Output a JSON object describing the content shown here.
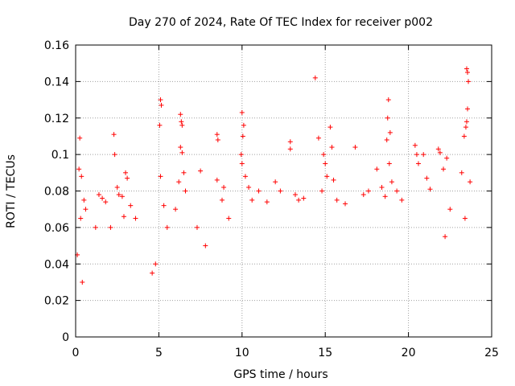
{
  "chart_data": {
    "type": "scatter",
    "title": "Day 270 of 2024, Rate Of TEC Index for receiver p002",
    "xlabel": "GPS time / hours",
    "ylabel": "ROTI / TECUs",
    "xlim": [
      0,
      25
    ],
    "ylim": [
      0,
      0.16
    ],
    "x_ticks": [
      0,
      5,
      10,
      15,
      20,
      25
    ],
    "y_ticks": [
      0,
      0.02,
      0.04,
      0.06,
      0.08,
      0.1,
      0.12,
      0.14,
      0.16
    ],
    "x_tick_labels": [
      "0",
      "5",
      "10",
      "15",
      "20",
      "25"
    ],
    "y_tick_labels": [
      "0",
      "0.02",
      "0.04",
      "0.06",
      "0.08",
      "0.1",
      "0.12",
      "0.14",
      "0.16"
    ],
    "grid": true,
    "marker": "+",
    "color": "#ff0000",
    "series": [
      {
        "name": "ROTI",
        "points": [
          [
            0.25,
            0.109
          ],
          [
            0.2,
            0.092
          ],
          [
            0.35,
            0.088
          ],
          [
            0.5,
            0.075
          ],
          [
            0.3,
            0.065
          ],
          [
            0.1,
            0.045
          ],
          [
            0.4,
            0.03
          ],
          [
            0.6,
            0.07
          ],
          [
            1.4,
            0.078
          ],
          [
            1.6,
            0.076
          ],
          [
            1.8,
            0.074
          ],
          [
            1.2,
            0.06
          ],
          [
            2.1,
            0.06
          ],
          [
            2.3,
            0.111
          ],
          [
            2.35,
            0.1
          ],
          [
            2.5,
            0.082
          ],
          [
            2.6,
            0.078
          ],
          [
            2.8,
            0.077
          ],
          [
            3.0,
            0.09
          ],
          [
            3.1,
            0.087
          ],
          [
            2.9,
            0.066
          ],
          [
            3.3,
            0.072
          ],
          [
            3.6,
            0.065
          ],
          [
            4.6,
            0.035
          ],
          [
            4.8,
            0.04
          ],
          [
            5.1,
            0.13
          ],
          [
            5.15,
            0.127
          ],
          [
            5.05,
            0.116
          ],
          [
            5.1,
            0.088
          ],
          [
            5.3,
            0.072
          ],
          [
            5.5,
            0.06
          ],
          [
            6.3,
            0.122
          ],
          [
            6.35,
            0.118
          ],
          [
            6.4,
            0.116
          ],
          [
            6.3,
            0.104
          ],
          [
            6.4,
            0.101
          ],
          [
            6.5,
            0.09
          ],
          [
            6.2,
            0.085
          ],
          [
            6.6,
            0.08
          ],
          [
            6.0,
            0.07
          ],
          [
            7.5,
            0.091
          ],
          [
            7.3,
            0.06
          ],
          [
            7.8,
            0.05
          ],
          [
            8.5,
            0.111
          ],
          [
            8.55,
            0.108
          ],
          [
            8.5,
            0.086
          ],
          [
            8.9,
            0.082
          ],
          [
            8.8,
            0.075
          ],
          [
            9.2,
            0.065
          ],
          [
            10.0,
            0.123
          ],
          [
            10.1,
            0.116
          ],
          [
            10.05,
            0.11
          ],
          [
            9.95,
            0.1
          ],
          [
            10.0,
            0.095
          ],
          [
            10.2,
            0.088
          ],
          [
            10.4,
            0.082
          ],
          [
            10.6,
            0.075
          ],
          [
            11.0,
            0.08
          ],
          [
            11.5,
            0.074
          ],
          [
            12.0,
            0.085
          ],
          [
            12.3,
            0.08
          ],
          [
            12.9,
            0.107
          ],
          [
            12.9,
            0.103
          ],
          [
            13.2,
            0.078
          ],
          [
            13.4,
            0.075
          ],
          [
            13.7,
            0.076
          ],
          [
            14.4,
            0.142
          ],
          [
            14.6,
            0.109
          ],
          [
            14.9,
            0.1
          ],
          [
            15.0,
            0.095
          ],
          [
            15.1,
            0.088
          ],
          [
            14.8,
            0.08
          ],
          [
            15.3,
            0.115
          ],
          [
            15.4,
            0.104
          ],
          [
            15.5,
            0.086
          ],
          [
            15.7,
            0.075
          ],
          [
            16.2,
            0.073
          ],
          [
            16.8,
            0.104
          ],
          [
            17.3,
            0.078
          ],
          [
            17.6,
            0.08
          ],
          [
            18.1,
            0.092
          ],
          [
            18.4,
            0.082
          ],
          [
            18.6,
            0.077
          ],
          [
            18.7,
            0.108
          ],
          [
            18.75,
            0.12
          ],
          [
            18.8,
            0.13
          ],
          [
            18.9,
            0.112
          ],
          [
            18.85,
            0.095
          ],
          [
            19.0,
            0.085
          ],
          [
            19.3,
            0.08
          ],
          [
            19.6,
            0.075
          ],
          [
            20.4,
            0.105
          ],
          [
            20.5,
            0.1
          ],
          [
            20.6,
            0.095
          ],
          [
            20.9,
            0.1
          ],
          [
            21.1,
            0.087
          ],
          [
            21.3,
            0.081
          ],
          [
            21.8,
            0.103
          ],
          [
            21.9,
            0.101
          ],
          [
            22.1,
            0.092
          ],
          [
            22.3,
            0.098
          ],
          [
            22.5,
            0.07
          ],
          [
            22.2,
            0.055
          ],
          [
            23.2,
            0.09
          ],
          [
            23.35,
            0.11
          ],
          [
            23.45,
            0.115
          ],
          [
            23.5,
            0.147
          ],
          [
            23.55,
            0.145
          ],
          [
            23.6,
            0.14
          ],
          [
            23.55,
            0.125
          ],
          [
            23.5,
            0.118
          ],
          [
            23.7,
            0.085
          ],
          [
            23.4,
            0.065
          ]
        ]
      }
    ]
  }
}
